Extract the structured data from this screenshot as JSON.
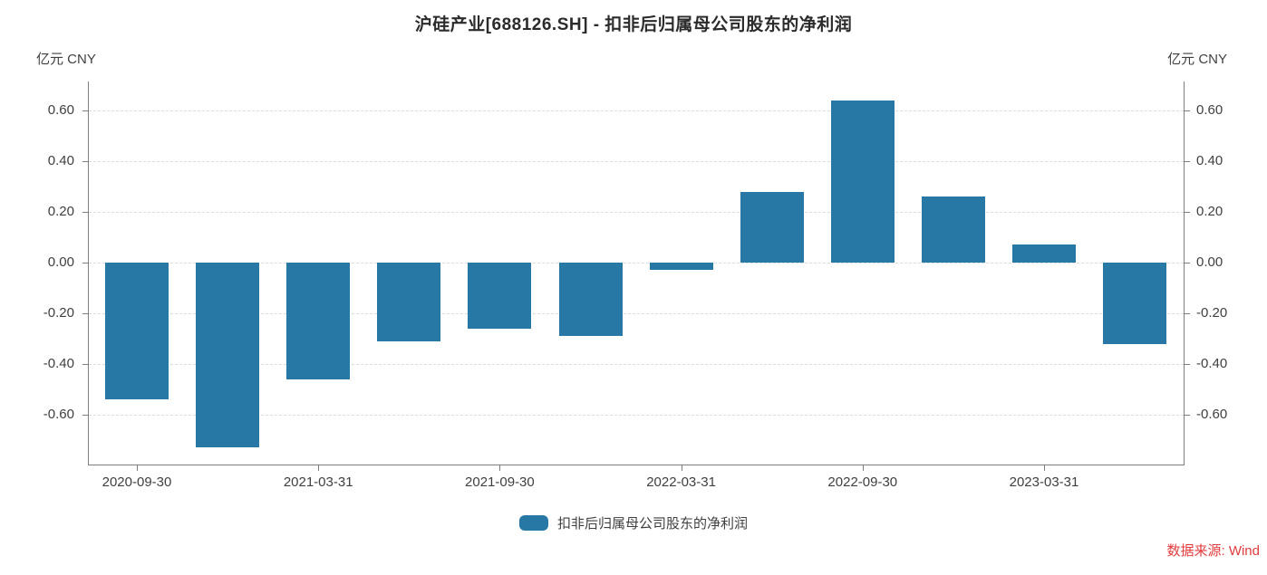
{
  "page": {
    "background": "#ffffff"
  },
  "colors": {
    "bar": "#2778a4",
    "axis": "#7f7f7f",
    "grid": "#dcdcdc",
    "text": "#404040",
    "title": "#2b2b2b",
    "source_red": "#e23b3b"
  },
  "chart_data": {
    "type": "bar",
    "title": "沪硅产业[688126.SH] - 扣非后归属母公司股东的净利润",
    "unit_label": "亿元 CNY",
    "categories": [
      "2020-09-30",
      "",
      "2021-03-31",
      "",
      "2021-09-30",
      "",
      "2022-03-31",
      "",
      "2022-09-30",
      "",
      "2023-03-31",
      ""
    ],
    "values": [
      -0.54,
      -0.73,
      -0.46,
      -0.31,
      -0.26,
      -0.29,
      -0.03,
      0.28,
      0.64,
      0.26,
      0.07,
      -0.32
    ],
    "series": [
      {
        "name": "扣非后归属母公司股东的净利润",
        "values": [
          -0.54,
          -0.73,
          -0.46,
          -0.31,
          -0.26,
          -0.29,
          -0.03,
          0.28,
          0.64,
          0.26,
          0.07,
          -0.32
        ]
      }
    ],
    "xlabel": "",
    "ylabel": "亿元 CNY",
    "y_ticks": [
      0.6,
      0.4,
      0.2,
      0,
      -0.2,
      -0.4,
      -0.6
    ],
    "y_tick_labels": [
      "0.60",
      "0.40",
      "0.20",
      "0.00",
      "-0.20",
      "-0.40",
      "-0.60"
    ],
    "ylim": [
      -0.8,
      0.715
    ],
    "grid": "horizontal-dashed",
    "legend_position": "bottom-center",
    "dual_y_axis": true
  },
  "legend": {
    "label": "扣非后归属母公司股东的净利润"
  },
  "source": {
    "text": "数据来源: Wind"
  }
}
